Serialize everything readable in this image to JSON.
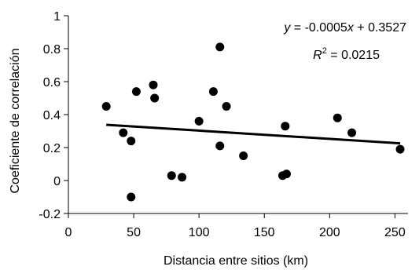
{
  "chart_data": {
    "type": "scatter",
    "title": "",
    "xlabel": "Distancia entre sitios (km)",
    "ylabel": "Coeficiente de correlación",
    "xlim": [
      0,
      260
    ],
    "ylim": [
      -0.2,
      1.0
    ],
    "xticks": [
      0,
      50,
      100,
      150,
      200,
      250
    ],
    "xtick_labels": [
      "0",
      "50",
      "100",
      "150",
      "200",
      "250"
    ],
    "yticks": [
      -0.2,
      0,
      0.2,
      0.4,
      0.6,
      0.8,
      1.0
    ],
    "ytick_labels": [
      "-0.2",
      "0",
      "0.2",
      "0.4",
      "0.6",
      "0.8",
      "1"
    ],
    "grid": false,
    "legend": "none",
    "series": [
      {
        "marker_color": "#000000",
        "points": [
          {
            "x": 29,
            "y": 0.45
          },
          {
            "x": 42,
            "y": 0.29
          },
          {
            "x": 48,
            "y": 0.24
          },
          {
            "x": 48,
            "y": -0.1
          },
          {
            "x": 52,
            "y": 0.54
          },
          {
            "x": 65,
            "y": 0.58
          },
          {
            "x": 66,
            "y": 0.5
          },
          {
            "x": 79,
            "y": 0.03
          },
          {
            "x": 87,
            "y": 0.02
          },
          {
            "x": 100,
            "y": 0.36
          },
          {
            "x": 111,
            "y": 0.54
          },
          {
            "x": 116,
            "y": 0.81
          },
          {
            "x": 116,
            "y": 0.21
          },
          {
            "x": 121,
            "y": 0.45
          },
          {
            "x": 134,
            "y": 0.15
          },
          {
            "x": 164,
            "y": 0.03
          },
          {
            "x": 166,
            "y": 0.33
          },
          {
            "x": 167,
            "y": 0.04
          },
          {
            "x": 206,
            "y": 0.38
          },
          {
            "x": 217,
            "y": 0.29
          },
          {
            "x": 254,
            "y": 0.19
          }
        ]
      }
    ],
    "trendline": {
      "slope": -0.0005,
      "intercept": 0.3527,
      "x_start": 29,
      "x_end": 254,
      "color": "#000000"
    },
    "annotations": {
      "equation": {
        "y_var": "y",
        "equals": " = -0.0005",
        "x_var": "x",
        "rest": " + 0.3527"
      },
      "r_squared": {
        "r_var": "R",
        "sup": "2",
        "rest": " = 0.0215"
      }
    }
  }
}
